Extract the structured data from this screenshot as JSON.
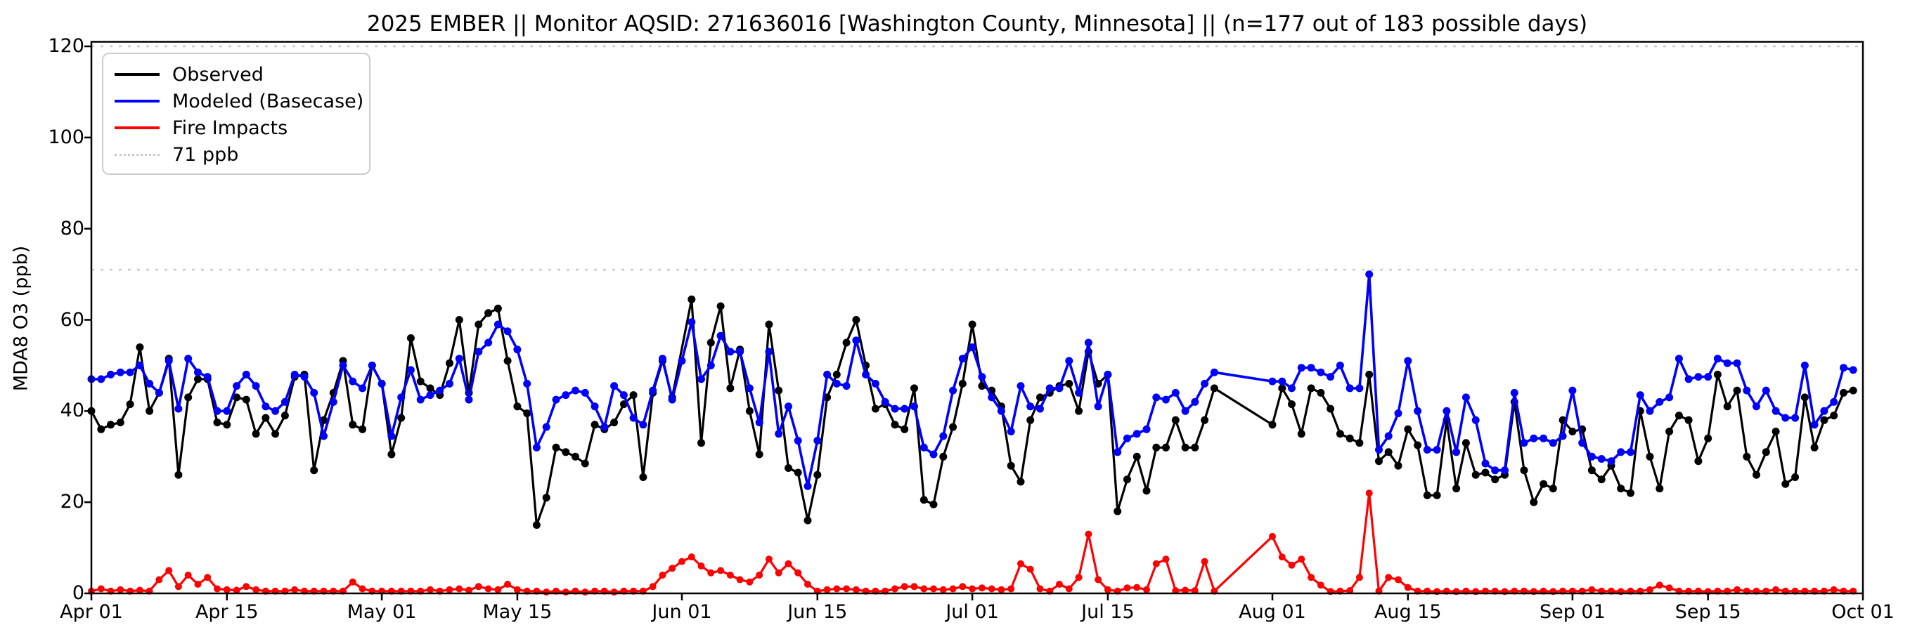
{
  "title": "2025 EMBER || Monitor AQSID: 271636016 [Washington County, Minnesota] || (n=177 out of 183 possible days)",
  "colors": {
    "observed": "#000000",
    "modeled": "#0000ff",
    "fire": "#ff0000",
    "reference": "#c9c9c9",
    "spine": "#000000",
    "legend_border": "#cccccc"
  },
  "legend": {
    "items": [
      {
        "label": "Observed",
        "color": "#000000",
        "style": "solid"
      },
      {
        "label": "Modeled (Basecase)",
        "color": "#0000ff",
        "style": "solid"
      },
      {
        "label": "Fire Impacts",
        "color": "#ff0000",
        "style": "solid"
      },
      {
        "label": "71 ppb",
        "color": "#c9c9c9",
        "style": "dotted"
      }
    ]
  },
  "chart_data": {
    "type": "line",
    "title": "2025 EMBER || Monitor AQSID: 271636016 [Washington County, Minnesota] || (n=177 out of 183 possible days)",
    "xlabel": "",
    "ylabel": "MDA8 O3 (ppb)",
    "ylim": [
      0,
      121
    ],
    "n_days": 183,
    "x_start": "Apr 01",
    "x_end": "Oct 01",
    "missing_observation_days": [
      "Jun 01",
      "Jul 27",
      "Jul 28",
      "Jul 29",
      "Jul 30",
      "Jul 31"
    ],
    "x_ticks": [
      {
        "label": "Apr 01",
        "day": 0
      },
      {
        "label": "Apr 15",
        "day": 14
      },
      {
        "label": "May 01",
        "day": 30
      },
      {
        "label": "May 15",
        "day": 44
      },
      {
        "label": "Jun 01",
        "day": 61
      },
      {
        "label": "Jun 15",
        "day": 75
      },
      {
        "label": "Jul 01",
        "day": 91
      },
      {
        "label": "Jul 15",
        "day": 105
      },
      {
        "label": "Aug 01",
        "day": 122
      },
      {
        "label": "Aug 15",
        "day": 136
      },
      {
        "label": "Sep 01",
        "day": 153
      },
      {
        "label": "Sep 15",
        "day": 167
      },
      {
        "label": "Oct 01",
        "day": 183
      }
    ],
    "y_ticks": [
      0,
      20,
      40,
      60,
      80,
      100,
      120
    ],
    "reference_lines": [
      {
        "value": 71,
        "label": "71 ppb",
        "style": "dotted"
      },
      {
        "value": 120,
        "label": "",
        "style": "dotted"
      }
    ],
    "series": [
      {
        "name": "Observed",
        "color": "#000000",
        "marker_radius": 5.5,
        "line_width": 3.2,
        "values": [
          40,
          36,
          37,
          37.5,
          41.5,
          54,
          40,
          44,
          51.5,
          26,
          43,
          47,
          47,
          37.5,
          37,
          43,
          42.5,
          35,
          38.5,
          35,
          39,
          47.5,
          48,
          27,
          38,
          44,
          51,
          37,
          36,
          50,
          46,
          30.5,
          38.5,
          56,
          46.5,
          45,
          43.5,
          50.5,
          60,
          44,
          59,
          61.5,
          62.5,
          51,
          41,
          39.5,
          15,
          21,
          32,
          31,
          30,
          28.5,
          37,
          36,
          37.5,
          41.5,
          43.5,
          25.5,
          44,
          51,
          43,
          null,
          64.5,
          33,
          55,
          63,
          45,
          53.5,
          40,
          30.5,
          59,
          44.5,
          27.5,
          26.5,
          16,
          26,
          43,
          48,
          55,
          60,
          50,
          40.5,
          41.5,
          37,
          36,
          45,
          20.5,
          19.5,
          30,
          36.5,
          46,
          59,
          45.5,
          44.5,
          41,
          28,
          24.5,
          38,
          43,
          44,
          45.5,
          46,
          40,
          53,
          46,
          48,
          18,
          25,
          30,
          22.5,
          32,
          32,
          38,
          32,
          32,
          38,
          45,
          null,
          null,
          null,
          null,
          null,
          37,
          45,
          41.5,
          35,
          45,
          44,
          40.5,
          35,
          34,
          33,
          48,
          29,
          31,
          28,
          36,
          32.5,
          21.5,
          21.5,
          38,
          23,
          33,
          26,
          26.5,
          25,
          26,
          42,
          27,
          20,
          24,
          23,
          38,
          35.5,
          36,
          27,
          25,
          28,
          23,
          22,
          40,
          30,
          23,
          35.5,
          39,
          38,
          29,
          34,
          48,
          41,
          44.5,
          30,
          26,
          31,
          35.5,
          24,
          25.5,
          43,
          32,
          38,
          39,
          44,
          44.5
        ]
      },
      {
        "name": "Modeled (Basecase)",
        "color": "#0000ff",
        "marker_radius": 5.5,
        "line_width": 3.6,
        "values": [
          47,
          47,
          48,
          48.5,
          48.5,
          50,
          46,
          44,
          51,
          40.5,
          51.5,
          48.5,
          47.5,
          40,
          40,
          45.5,
          48,
          45.5,
          41,
          40,
          42,
          48,
          47.5,
          44,
          34.5,
          42,
          50,
          46.5,
          45,
          50,
          46,
          34.5,
          43,
          49,
          42.5,
          43.5,
          44.5,
          46,
          51.5,
          42.5,
          53,
          55,
          59,
          57.5,
          53.5,
          46,
          32,
          36.5,
          42.5,
          43.5,
          44.5,
          44,
          41,
          36.5,
          45.5,
          43.5,
          38.5,
          37,
          44.5,
          51.5,
          42.5,
          51,
          59.5,
          47,
          50,
          56.5,
          53,
          53,
          45,
          37.5,
          53,
          35,
          41,
          33.5,
          23.5,
          33.5,
          48,
          46,
          45.5,
          55.5,
          48,
          46,
          42,
          40.5,
          40.5,
          41,
          32,
          30.5,
          34.5,
          44.5,
          51.5,
          54,
          47.5,
          43,
          40,
          35.5,
          45.5,
          41,
          40.5,
          45,
          45,
          51,
          44,
          55,
          41,
          48,
          31,
          34,
          35,
          36,
          43,
          42.5,
          44,
          40,
          42,
          46,
          48.5,
          null,
          null,
          null,
          null,
          null,
          46.5,
          46.5,
          45,
          49.5,
          49.5,
          48.5,
          47.5,
          50,
          45,
          45,
          70,
          31.5,
          34.5,
          39.5,
          51,
          40,
          31.5,
          31.5,
          40,
          31,
          43,
          38,
          28.5,
          27,
          27,
          44,
          33,
          34,
          34,
          33,
          34.5,
          44.5,
          33,
          30,
          29.5,
          29,
          31,
          31,
          43.5,
          40,
          42,
          43,
          51.5,
          47,
          47.5,
          47.5,
          51.5,
          50.5,
          50.5,
          44.5,
          41,
          44.5,
          40,
          38.5,
          38.5,
          50,
          37,
          40,
          42,
          49.5,
          49
        ]
      },
      {
        "name": "Fire Impacts",
        "color": "#ff0000",
        "marker_radius": 5,
        "line_width": 3.2,
        "values": [
          0.5,
          1,
          0.5,
          0.8,
          0.5,
          0.7,
          0.5,
          3,
          5,
          1.5,
          4,
          2,
          3.5,
          1,
          0.8,
          0.7,
          1.5,
          0.8,
          0.5,
          0.5,
          0.5,
          0.8,
          0.5,
          0.5,
          0.5,
          0.5,
          0.5,
          2.5,
          1,
          0.5,
          0.5,
          0.5,
          0.5,
          0.5,
          0.5,
          0.8,
          0.5,
          0.8,
          1,
          0.7,
          1.5,
          1,
          0.8,
          2,
          0.8,
          0.5,
          0.5,
          0.3,
          0.5,
          0.3,
          0.5,
          0.3,
          0.5,
          0.5,
          0.3,
          0.5,
          0.5,
          0.5,
          1.5,
          4,
          5.5,
          7,
          8,
          6,
          4.5,
          5,
          4,
          3,
          2.5,
          4,
          7.5,
          4.5,
          6.5,
          4.5,
          2,
          0.5,
          0.8,
          1,
          1,
          0.8,
          0.5,
          0.5,
          0.5,
          1,
          1.5,
          1.5,
          1,
          1,
          0.8,
          1,
          1.5,
          1,
          1.2,
          1,
          0.8,
          1,
          6.5,
          5.3,
          1,
          0.5,
          2,
          1,
          3.5,
          13,
          3,
          0.8,
          0.5,
          1.2,
          1.3,
          0.8,
          6.5,
          7.5,
          0.6,
          0.7,
          0.6,
          7,
          0.5,
          null,
          null,
          null,
          null,
          null,
          12.5,
          8,
          6.2,
          7.5,
          3.5,
          1.8,
          0.4,
          0.5,
          0.6,
          3.5,
          22,
          0.5,
          3.5,
          3,
          1.3,
          0.5,
          0.5,
          0.4,
          0.5,
          0.4,
          0.5,
          0.4,
          0.5,
          0.5,
          0.4,
          0.5,
          0.5,
          0.4,
          0.5,
          0.4,
          0.5,
          0.5,
          0.5,
          0.8,
          0.5,
          0.5,
          0.4,
          0.5,
          0.5,
          0.8,
          1.8,
          1.2,
          0.5,
          0.5,
          0.5,
          0.4,
          0.5,
          0.5,
          0.8,
          0.5,
          0.5,
          0.5,
          0.8,
          0.5,
          0.5,
          0.5,
          0.5,
          0.5,
          0.8,
          0.5,
          0.5
        ]
      }
    ]
  }
}
